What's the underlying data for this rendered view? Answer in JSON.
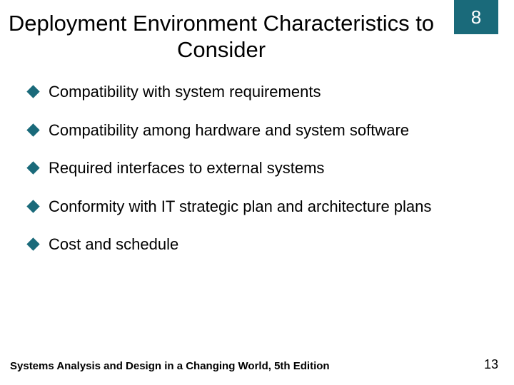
{
  "colors": {
    "badge_bg": "#1a6a7a",
    "badge_text": "#ffffff",
    "title_text": "#000000",
    "bullet_marker": "#1a6a7a",
    "body_text": "#000000",
    "footer_text": "#000000",
    "background": "#ffffff"
  },
  "chapter_number": "8",
  "title": "Deployment Environment Characteristics to Consider",
  "bullets": [
    "Compatibility with system requirements",
    "Compatibility among hardware and system software",
    "Required interfaces to external systems",
    "Conformity with IT strategic plan and architecture plans",
    "Cost and schedule"
  ],
  "footer": {
    "book": "Systems Analysis and Design in a Changing World, 5th Edition",
    "page": "13"
  }
}
